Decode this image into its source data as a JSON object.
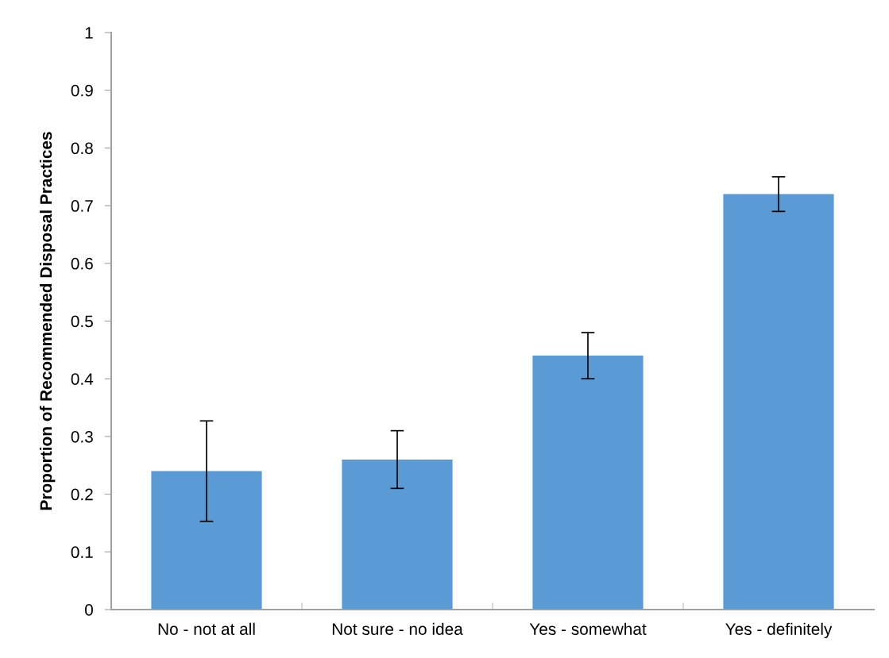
{
  "chart_data": {
    "type": "bar",
    "ylabel": "Proportion of Recommended Disposal Practices",
    "categories": [
      "No - not at all",
      "Not sure - no idea",
      "Yes - somewhat",
      "Yes - definitely"
    ],
    "values": [
      0.24,
      0.26,
      0.44,
      0.72
    ],
    "errors": [
      0.087,
      0.05,
      0.04,
      0.03
    ],
    "color": "#5b9bd5",
    "ylim": [
      0,
      1
    ],
    "yticks": [
      {
        "value": 0,
        "label": "0"
      },
      0.1,
      0.2,
      0.3,
      0.4,
      0.5,
      0.6,
      0.7,
      0.8,
      0.9,
      {
        "value": 1,
        "label": "1"
      }
    ],
    "grid": false
  }
}
